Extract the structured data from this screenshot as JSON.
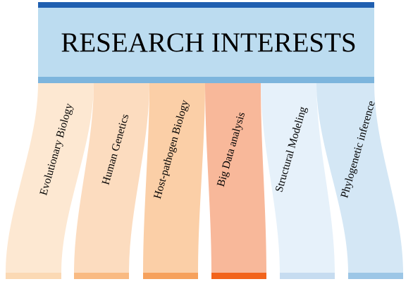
{
  "header": {
    "title": "RESEARCH INTERESTS",
    "bar_color": "#1f5fb0",
    "box_color": "#bcdcf0",
    "underline_color": "#7db5dd"
  },
  "interests": [
    {
      "label": "Evolutionary Biology",
      "color": "#fde8d2",
      "base_color": "#fbd9b4"
    },
    {
      "label": "Human Genetics",
      "color": "#fcdcbf",
      "base_color": "#f9ba82"
    },
    {
      "label": "Host-pathogen Biology",
      "color": "#fbcfa7",
      "base_color": "#f6a15c"
    },
    {
      "label": "Big Data analysis",
      "color": "#f8b89a",
      "base_color": "#f2631b"
    },
    {
      "label": "Structural Modeling",
      "color": "#e6f1fa",
      "base_color": "#c6dcf0"
    },
    {
      "label": "Phylogenetic inference",
      "color": "#d4e7f5",
      "base_color": "#9cc6e6"
    }
  ]
}
